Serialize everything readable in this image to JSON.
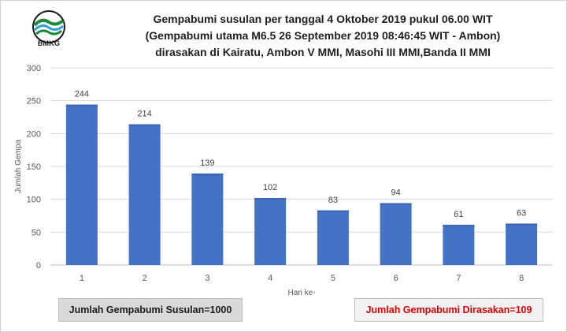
{
  "logo": {
    "text": "BMKG"
  },
  "title_lines": [
    "Gempabumi susulan per tanggal 4 Oktober 2019 pukul 06.00 WIT",
    "(Gempabumi utama M6.5 26 September 2019 08:46:45 WIT - Ambon)",
    "dirasakan di Kairatu, Ambon V MMI, Masohi III MMI,Banda II MMI"
  ],
  "summary": {
    "left": "Jumlah Gempabumi Susulan=1000",
    "right": "Jumlah Gempabumi Dirasakan=109"
  },
  "colors": {
    "bar": "#4472c4",
    "bar_top": "#3a63b8",
    "summary_right_text": "#e00000"
  },
  "chart_data": {
    "type": "bar",
    "title": "Gempabumi susulan per tanggal 4 Oktober 2019 pukul 06.00 WIT",
    "categories": [
      "1",
      "2",
      "3",
      "4",
      "5",
      "6",
      "7",
      "8"
    ],
    "values": [
      244,
      214,
      139,
      102,
      83,
      94,
      61,
      63
    ],
    "data_labels": [
      "244",
      "214",
      "139",
      "102",
      "83",
      "94",
      "61",
      "63"
    ],
    "xlabel": "Hari ke-",
    "ylabel": "Jumlah Gempa",
    "ylim": [
      0,
      300
    ],
    "yticks": [
      "0",
      "50",
      "100",
      "150",
      "200",
      "250",
      "300"
    ],
    "grid": true,
    "legend": "none"
  }
}
